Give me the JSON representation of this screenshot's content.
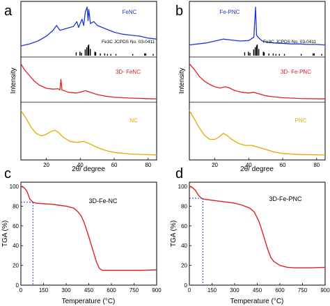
{
  "chart_data": [
    {
      "panel": "a",
      "type": "line",
      "xlabel": "2θ/ degree",
      "ylabel": "Intensity",
      "xlim": [
        5,
        85
      ],
      "xticks": [
        20,
        40,
        60,
        80
      ],
      "series": [
        {
          "name": "FeNC",
          "color": "#1c36d8",
          "points": [
            [
              5,
              0.2
            ],
            [
              10,
              0.24
            ],
            [
              15,
              0.3
            ],
            [
              20,
              0.4
            ],
            [
              24,
              0.52
            ],
            [
              26,
              0.62
            ],
            [
              28,
              0.52
            ],
            [
              32,
              0.56
            ],
            [
              36,
              0.6
            ],
            [
              38,
              0.7
            ],
            [
              39,
              0.58
            ],
            [
              41,
              0.75
            ],
            [
              42,
              0.62
            ],
            [
              43,
              0.9
            ],
            [
              44,
              1.0
            ],
            [
              44.6,
              0.72
            ],
            [
              45,
              0.95
            ],
            [
              46,
              0.66
            ],
            [
              48,
              0.7
            ],
            [
              50,
              0.62
            ],
            [
              55,
              0.55
            ],
            [
              60,
              0.48
            ],
            [
              65,
              0.44
            ],
            [
              70,
              0.42
            ],
            [
              75,
              0.4
            ],
            [
              80,
              0.36
            ],
            [
              85,
              0.34
            ]
          ]
        },
        {
          "name": "3D- FeNC",
          "color": "#e02020",
          "points": [
            [
              5,
              0.95
            ],
            [
              7,
              0.8
            ],
            [
              10,
              0.65
            ],
            [
              13,
              0.5
            ],
            [
              16,
              0.4
            ],
            [
              20,
              0.32
            ],
            [
              24,
              0.3
            ],
            [
              27,
              0.31
            ],
            [
              28,
              0.28
            ],
            [
              28.6,
              0.55
            ],
            [
              29.2,
              0.28
            ],
            [
              33,
              0.22
            ],
            [
              38,
              0.2
            ],
            [
              43,
              0.26
            ],
            [
              46,
              0.22
            ],
            [
              50,
              0.16
            ],
            [
              55,
              0.12
            ],
            [
              60,
              0.09
            ],
            [
              70,
              0.07
            ],
            [
              85,
              0.05
            ]
          ]
        },
        {
          "name": "NC",
          "color": "#e8a800",
          "points": [
            [
              5,
              0.95
            ],
            [
              8,
              0.8
            ],
            [
              11,
              0.62
            ],
            [
              14,
              0.5
            ],
            [
              17,
              0.45
            ],
            [
              20,
              0.48
            ],
            [
              23,
              0.54
            ],
            [
              25,
              0.56
            ],
            [
              27,
              0.52
            ],
            [
              30,
              0.42
            ],
            [
              34,
              0.34
            ],
            [
              38,
              0.32
            ],
            [
              42,
              0.34
            ],
            [
              45,
              0.3
            ],
            [
              50,
              0.22
            ],
            [
              55,
              0.16
            ],
            [
              60,
              0.12
            ],
            [
              70,
              0.09
            ],
            [
              85,
              0.07
            ]
          ]
        }
      ],
      "reference": {
        "label": "Fe3C  JCPDS No. 03-0411",
        "sticks": [
          [
            37.6,
            0.3
          ],
          [
            39.8,
            0.35
          ],
          [
            40.7,
            0.25
          ],
          [
            42.9,
            0.55
          ],
          [
            43.8,
            0.75
          ],
          [
            44.6,
            0.9
          ],
          [
            45.0,
            1.0
          ],
          [
            45.9,
            0.6
          ],
          [
            48.6,
            0.35
          ],
          [
            49.1,
            0.3
          ],
          [
            51.8,
            0.2
          ],
          [
            54.4,
            0.2
          ],
          [
            56.0,
            0.15
          ],
          [
            58.0,
            0.15
          ],
          [
            61.0,
            0.15
          ],
          [
            70.9,
            0.15
          ],
          [
            77.9,
            0.2
          ],
          [
            78.6,
            0.2
          ],
          [
            83.0,
            0.15
          ]
        ]
      }
    },
    {
      "panel": "b",
      "type": "line",
      "xlabel": "2θ/ degree",
      "ylabel": "Intensity",
      "xlim": [
        5,
        85
      ],
      "xticks": [
        20,
        40,
        60,
        80
      ],
      "series": [
        {
          "name": "Fe-PNC",
          "color": "#1c36d8",
          "points": [
            [
              5,
              0.22
            ],
            [
              10,
              0.24
            ],
            [
              15,
              0.26
            ],
            [
              20,
              0.3
            ],
            [
              25,
              0.34
            ],
            [
              30,
              0.32
            ],
            [
              35,
              0.3
            ],
            [
              40,
              0.31
            ],
            [
              43,
              0.38
            ],
            [
              44,
              1.0
            ],
            [
              44.6,
              0.42
            ],
            [
              46,
              0.36
            ],
            [
              48,
              0.3
            ],
            [
              50,
              0.28
            ],
            [
              55,
              0.26
            ],
            [
              60,
              0.25
            ],
            [
              65,
              0.24
            ],
            [
              70,
              0.24
            ],
            [
              75,
              0.23
            ],
            [
              80,
              0.23
            ],
            [
              85,
              0.22
            ]
          ]
        },
        {
          "name": "3D- Fe-PNC",
          "color": "#e02020",
          "points": [
            [
              5,
              0.95
            ],
            [
              8,
              0.8
            ],
            [
              11,
              0.62
            ],
            [
              14,
              0.5
            ],
            [
              17,
              0.42
            ],
            [
              20,
              0.36
            ],
            [
              23,
              0.33
            ],
            [
              26,
              0.36
            ],
            [
              28,
              0.34
            ],
            [
              32,
              0.26
            ],
            [
              36,
              0.22
            ],
            [
              40,
              0.2
            ],
            [
              43,
              0.22
            ],
            [
              46,
              0.18
            ],
            [
              50,
              0.13
            ],
            [
              55,
              0.1
            ],
            [
              60,
              0.08
            ],
            [
              70,
              0.06
            ],
            [
              85,
              0.05
            ]
          ]
        },
        {
          "name": "PNC",
          "color": "#e8a800",
          "points": [
            [
              5,
              0.95
            ],
            [
              8,
              0.78
            ],
            [
              11,
              0.6
            ],
            [
              14,
              0.46
            ],
            [
              17,
              0.38
            ],
            [
              20,
              0.38
            ],
            [
              23,
              0.44
            ],
            [
              25,
              0.5
            ],
            [
              27,
              0.46
            ],
            [
              30,
              0.38
            ],
            [
              34,
              0.3
            ],
            [
              38,
              0.26
            ],
            [
              42,
              0.26
            ],
            [
              45,
              0.23
            ],
            [
              50,
              0.18
            ],
            [
              55,
              0.13
            ],
            [
              60,
              0.1
            ],
            [
              70,
              0.08
            ],
            [
              85,
              0.07
            ]
          ]
        }
      ],
      "reference": {
        "label": "Fe3C  JCPDS No. 03-0411",
        "sticks": [
          [
            37.6,
            0.3
          ],
          [
            39.8,
            0.35
          ],
          [
            40.7,
            0.25
          ],
          [
            42.9,
            0.55
          ],
          [
            43.8,
            0.75
          ],
          [
            44.6,
            0.9
          ],
          [
            45.0,
            1.0
          ],
          [
            45.9,
            0.6
          ],
          [
            48.6,
            0.35
          ],
          [
            49.1,
            0.3
          ],
          [
            51.8,
            0.2
          ],
          [
            54.4,
            0.2
          ],
          [
            56.0,
            0.15
          ],
          [
            58.0,
            0.15
          ],
          [
            61.0,
            0.15
          ],
          [
            70.9,
            0.15
          ],
          [
            77.9,
            0.2
          ],
          [
            78.6,
            0.2
          ],
          [
            83.0,
            0.15
          ]
        ]
      }
    },
    {
      "panel": "c",
      "type": "line",
      "xlabel": "Temperature (°C)",
      "ylabel": "TGA (%)",
      "xlim": [
        0,
        900
      ],
      "ylim": [
        0,
        100
      ],
      "xticks": [
        0,
        150,
        300,
        450,
        600,
        750,
        900
      ],
      "yticks": [
        0,
        20,
        40,
        60,
        80,
        100
      ],
      "annotation": "3D-Fe-NC",
      "series": [
        {
          "name": "3D-Fe-NC",
          "color": "#e02020",
          "points": [
            [
              0,
              100
            ],
            [
              20,
              99
            ],
            [
              40,
              95
            ],
            [
              60,
              87
            ],
            [
              80,
              84
            ],
            [
              100,
              83
            ],
            [
              150,
              82.5
            ],
            [
              200,
              82
            ],
            [
              250,
              81
            ],
            [
              300,
              80
            ],
            [
              350,
              78
            ],
            [
              380,
              74
            ],
            [
              400,
              70
            ],
            [
              420,
              63
            ],
            [
              440,
              54
            ],
            [
              460,
              44
            ],
            [
              480,
              34
            ],
            [
              500,
              24
            ],
            [
              520,
              17
            ],
            [
              540,
              15
            ],
            [
              560,
              15
            ],
            [
              600,
              15
            ],
            [
              700,
              15
            ],
            [
              800,
              15
            ],
            [
              900,
              15.5
            ]
          ]
        }
      ],
      "guide": {
        "x": 80,
        "y": 84,
        "color": "#1c36d8"
      }
    },
    {
      "panel": "d",
      "type": "line",
      "xlabel": "Temperature (°C)",
      "ylabel": "TGA (%)",
      "xlim": [
        0,
        900
      ],
      "ylim": [
        0,
        100
      ],
      "xticks": [
        0,
        150,
        300,
        450,
        600,
        750,
        900
      ],
      "yticks": [
        0,
        20,
        40,
        60,
        80,
        100
      ],
      "annotation": "3D-Fe-PNC",
      "series": [
        {
          "name": "3D-Fe-PNC",
          "color": "#e02020",
          "points": [
            [
              0,
              100
            ],
            [
              20,
              99
            ],
            [
              40,
              96
            ],
            [
              60,
              91
            ],
            [
              80,
              88
            ],
            [
              100,
              87
            ],
            [
              150,
              86
            ],
            [
              200,
              85
            ],
            [
              250,
              84
            ],
            [
              300,
              83
            ],
            [
              350,
              81
            ],
            [
              400,
              78
            ],
            [
              430,
              74
            ],
            [
              460,
              65
            ],
            [
              480,
              56
            ],
            [
              500,
              46
            ],
            [
              520,
              36
            ],
            [
              540,
              28
            ],
            [
              560,
              24
            ],
            [
              600,
              20
            ],
            [
              650,
              18
            ],
            [
              700,
              17.5
            ],
            [
              800,
              17.5
            ],
            [
              900,
              18
            ]
          ]
        }
      ],
      "guide": {
        "x": 90,
        "y": 88,
        "color": "#1c36d8"
      }
    }
  ]
}
